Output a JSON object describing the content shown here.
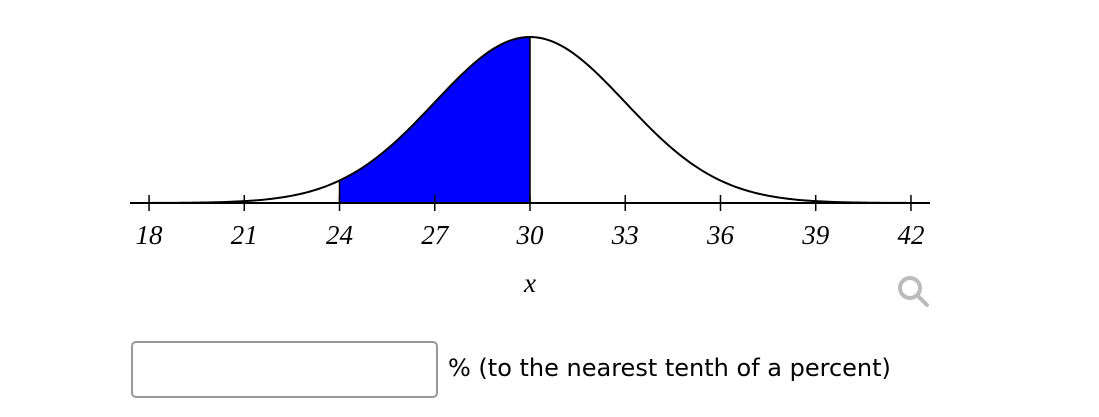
{
  "chart_data": {
    "type": "normal",
    "mean": 30,
    "sd": 3,
    "shade": [
      24,
      30
    ],
    "color": "#0000ff",
    "xlim": [
      17.4,
      42.6
    ],
    "xticks": [
      18,
      21,
      24,
      27,
      30,
      33,
      36,
      39,
      42
    ],
    "xlabel": "x"
  },
  "answer": {
    "suffix": "% (to the nearest tenth of a percent)"
  }
}
